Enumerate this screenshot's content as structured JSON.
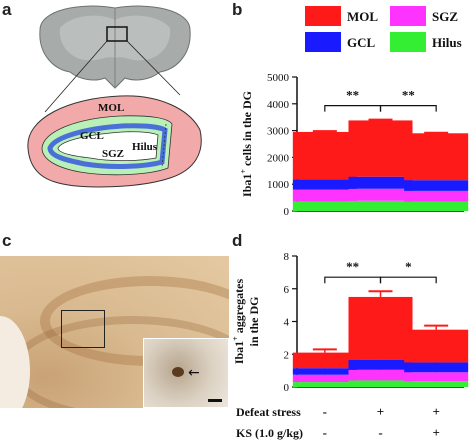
{
  "panels": {
    "a": "a",
    "b": "b",
    "c": "c",
    "d": "d"
  },
  "diagram": {
    "regions": [
      "MOL",
      "GCL",
      "SGZ",
      "Hilus"
    ]
  },
  "legend": {
    "items": [
      {
        "label": "MOL",
        "color": "#ff1a1a"
      },
      {
        "label": "SGZ",
        "color": "#ff33ff"
      },
      {
        "label": "GCL",
        "color": "#1a1aff"
      },
      {
        "label": "Hilus",
        "color": "#33ee33"
      }
    ]
  },
  "colors": {
    "MOL": "#ff1a1a",
    "GCL": "#1a1aff",
    "SGZ": "#ff33ff",
    "Hilus": "#33ee33"
  },
  "conditions": {
    "rows": [
      {
        "label": "Defeat stress",
        "values": [
          "-",
          "+",
          "+"
        ]
      },
      {
        "label": "KS (1.0 g/kg)",
        "values": [
          "-",
          "-",
          "+"
        ]
      }
    ]
  },
  "chart_data": [
    {
      "type": "bar",
      "stacked": true,
      "title": "",
      "ylabel": "Iba1+ cells in the DG",
      "ylabel_main": "Iba1",
      "ylabel_sup": "+",
      "ylabel_rest": " cells in the DG",
      "ylim": [
        0,
        5000
      ],
      "yticks": [
        "0",
        "1000",
        "2000",
        "3000",
        "4000",
        "5000"
      ],
      "ytick_values": [
        0,
        1000,
        2000,
        3000,
        4000,
        5000
      ],
      "categories": [
        "1",
        "2",
        "3"
      ],
      "series": [
        {
          "name": "Hilus",
          "values": [
            350,
            380,
            350
          ]
        },
        {
          "name": "SGZ",
          "values": [
            450,
            450,
            400
          ]
        },
        {
          "name": "GCL",
          "values": [
            380,
            450,
            400
          ]
        },
        {
          "name": "MOL",
          "values": [
            1770,
            2100,
            1750
          ]
        }
      ],
      "totals": [
        2950,
        3380,
        2900
      ],
      "errors": [
        30,
        30,
        20
      ],
      "significance": [
        {
          "from": 0,
          "to": 1,
          "label": "**"
        },
        {
          "from": 1,
          "to": 2,
          "label": "**"
        }
      ]
    },
    {
      "type": "bar",
      "stacked": true,
      "title": "",
      "ylabel": "Iba1+ aggregates in the DG",
      "ylabel_main": "Iba1",
      "ylabel_sup": "+",
      "ylabel_rest": " aggregates",
      "ylabel_line2": "in the DG",
      "ylim": [
        0,
        8
      ],
      "yticks": [
        "0",
        "2",
        "4",
        "6",
        "8"
      ],
      "ytick_values": [
        0,
        2,
        4,
        6,
        8
      ],
      "categories": [
        "1",
        "2",
        "3"
      ],
      "series": [
        {
          "name": "Hilus",
          "values": [
            0.3,
            0.4,
            0.35
          ]
        },
        {
          "name": "SGZ",
          "values": [
            0.45,
            0.65,
            0.55
          ]
        },
        {
          "name": "GCL",
          "values": [
            0.4,
            0.6,
            0.6
          ]
        },
        {
          "name": "MOL",
          "values": [
            0.95,
            3.85,
            2.0
          ]
        }
      ],
      "segment_errors": [
        [
          0.1,
          0.15,
          0.1
        ],
        [
          0.12,
          0.2,
          0.15
        ],
        [
          0.15,
          0.2,
          0.2
        ],
        [
          0.2,
          0.35,
          0.25
        ]
      ],
      "totals": [
        2.1,
        5.5,
        3.5
      ],
      "significance": [
        {
          "from": 0,
          "to": 1,
          "label": "**"
        },
        {
          "from": 1,
          "to": 2,
          "label": "*"
        }
      ]
    }
  ]
}
